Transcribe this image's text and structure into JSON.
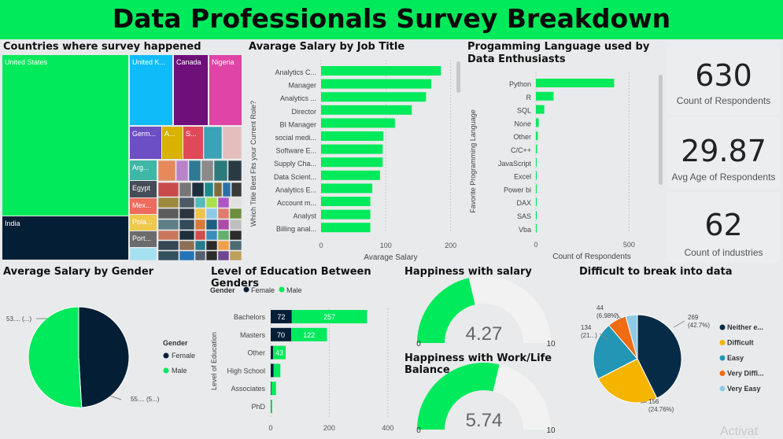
{
  "page": {
    "title": "Data Professionals Survey Breakdown",
    "watermark": "Activat"
  },
  "colors": {
    "green": "#00ea5b",
    "navy": "#041e36",
    "bg": "#e9eaeb"
  },
  "kpis": [
    {
      "value": "630",
      "label": "Count of Respondents"
    },
    {
      "value": "29.87",
      "label": "Avg Age of Respondents"
    },
    {
      "value": "62",
      "label": "Count of industries"
    }
  ],
  "chart_data": [
    {
      "type": "treemap",
      "title": "Countries where survey happened",
      "labels": [
        "United States",
        "India",
        "United K...",
        "Canada",
        "Nigeria",
        "Germ...",
        "A...",
        "S...",
        "Arg...",
        "Egypt",
        "Mex...",
        "Pola...",
        "Port..."
      ]
    },
    {
      "type": "bar",
      "orientation": "horizontal",
      "title": "Avarage Salary by Job Title",
      "ylabel": "Which Title Best Fits your Current Role?",
      "xlabel": "Avarage Salary",
      "categories": [
        "Analytics C...",
        "Manager",
        "Analytics ...",
        "Director",
        "BI Manager",
        "social medi...",
        "Software E...",
        "Supply Cha...",
        "Data Scient...",
        "Analytics E...",
        "Account m...",
        "Analyst",
        "Billing anal..."
      ],
      "values": [
        185,
        170,
        162,
        140,
        114,
        96,
        95,
        95,
        91,
        79,
        76,
        76,
        76
      ],
      "xticks": [
        "0",
        "100",
        "200"
      ],
      "xlim": [
        0,
        215
      ]
    },
    {
      "type": "bar",
      "orientation": "horizontal",
      "title": "Progamming Language used by Data Enthusiasts",
      "ylabel": "Favorite Programming Language",
      "xlabel": "Count of Respondents",
      "categories": [
        "Python",
        "R",
        "SQL",
        "None",
        "Other",
        "C/C++",
        "JavaScript",
        "Excel",
        "Power bi",
        "DAX",
        "SAS",
        "Vba"
      ],
      "values": [
        420,
        95,
        45,
        15,
        10,
        6,
        3,
        3,
        2,
        2,
        1,
        1
      ],
      "xticks": [
        "0",
        "500"
      ],
      "xlim": [
        0,
        600
      ]
    },
    {
      "type": "pie",
      "title": "Average Salary by Gender",
      "legend_title": "Gender",
      "labels": [
        "Female",
        "Male"
      ],
      "values": [
        53,
        55
      ],
      "data_labels": [
        "53.... (...)",
        "55.... (5...)"
      ]
    },
    {
      "type": "bar",
      "orientation": "horizontal",
      "stacked": true,
      "title": "Level of Education Between Genders",
      "legend_title": "Gender",
      "ylabel": "Level of Education",
      "categories": [
        "Bachelors",
        "Masters",
        "Other",
        "High School",
        "Associates",
        "PhD"
      ],
      "series": [
        {
          "name": "Female",
          "values": [
            72,
            70,
            8,
            10,
            2,
            1
          ]
        },
        {
          "name": "Male",
          "values": [
            257,
            122,
            43,
            23,
            16,
            4
          ]
        }
      ],
      "data_labels": {
        "Female": [
          "72",
          "70",
          "",
          "",
          "",
          ""
        ],
        "Male": [
          "257",
          "122",
          "43",
          "",
          "",
          ""
        ]
      },
      "xticks": [
        "0",
        "200",
        "400"
      ],
      "xlim": [
        0,
        430
      ]
    },
    {
      "type": "gauge",
      "title": "Happiness with salary",
      "value": 4.27,
      "value_label": "4.27",
      "min": 0,
      "max": 10,
      "min_label": "0",
      "max_label": "10"
    },
    {
      "type": "gauge",
      "title": "Happiness with Work/Life Balance",
      "value": 5.74,
      "value_label": "5.74",
      "min": 0,
      "max": 10,
      "min_label": "0",
      "max_label": "10"
    },
    {
      "type": "pie",
      "title": "Difficult to break into data",
      "labels": [
        "Neither e...",
        "Difficult",
        "Easy",
        "Very Diffi...",
        "Very Easy"
      ],
      "values": [
        269,
        156,
        134,
        44,
        27
      ],
      "data_labels": [
        "269\n(42.7%)",
        "156\n(24.76%)",
        "134\n(21...)",
        "44\n(6.98%)",
        ""
      ],
      "colors": [
        "#052b47",
        "#f4b400",
        "#2296b4",
        "#ef6c13",
        "#8ecae6"
      ]
    }
  ]
}
